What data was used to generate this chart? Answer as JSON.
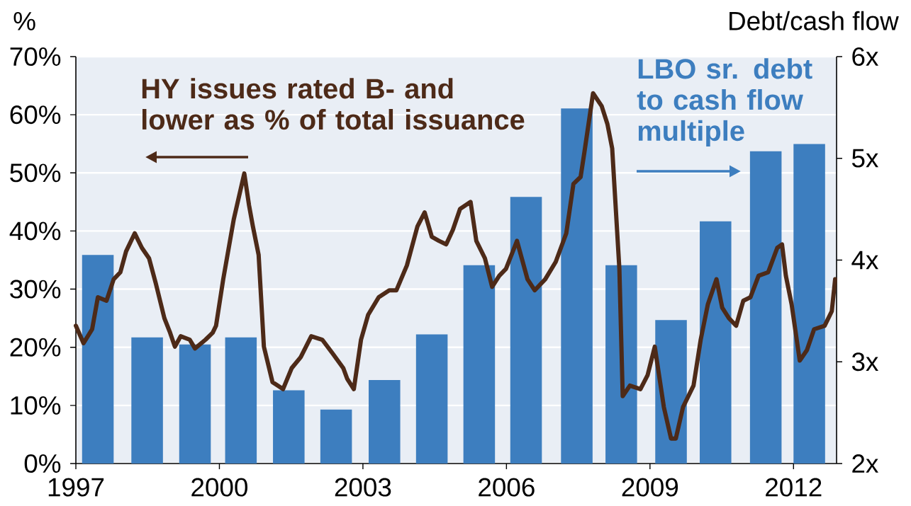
{
  "chart_data": {
    "type": "bar",
    "ylabel": "%",
    "y2label": "Debt/cash flow",
    "annotations": [
      "HY issues rated B- and lower as % of total issuance",
      "LBO sr. debt to cash flow multiple"
    ],
    "xlim": [
      1997,
      2012.9
    ],
    "xticks": [
      1997,
      2000,
      2003,
      2006,
      2009,
      2012
    ],
    "ylim": [
      0,
      70
    ],
    "yticks": [
      {
        "value": 0,
        "label": "0%"
      },
      {
        "value": 10,
        "label": "10%"
      },
      {
        "value": 20,
        "label": "20%"
      },
      {
        "value": 30,
        "label": "30%"
      },
      {
        "value": 40,
        "label": "40%"
      },
      {
        "value": 50,
        "label": "50%"
      },
      {
        "value": 60,
        "label": "60%"
      },
      {
        "value": 70,
        "label": "70%"
      }
    ],
    "y2lim": [
      2,
      6
    ],
    "y2ticks": [
      {
        "value": 2,
        "label": "2x"
      },
      {
        "value": 3,
        "label": "3x"
      },
      {
        "value": 4,
        "label": "4x"
      },
      {
        "value": 5,
        "label": "5x"
      },
      {
        "value": 6,
        "label": "6x"
      }
    ],
    "grid": "y",
    "series": [
      {
        "axis": "y2",
        "color": "#3d7ebf",
        "x": [
          1997.46,
          1998.49,
          1999.49,
          2000.45,
          2001.45,
          2002.44,
          2003.45,
          2004.44,
          2005.43,
          2006.41,
          2007.47,
          2008.4,
          2009.44,
          2010.37,
          2011.42,
          2012.33
        ],
        "values": [
          4.05,
          3.24,
          3.17,
          3.24,
          2.72,
          2.53,
          2.82,
          3.27,
          3.95,
          4.62,
          5.49,
          3.95,
          3.41,
          4.38,
          5.07,
          5.14
        ]
      },
      {
        "type": "line",
        "color": "#4d2a18",
        "x": [
          1997.0,
          1997.16,
          1997.34,
          1997.46,
          1997.64,
          1997.79,
          1997.93,
          1998.05,
          1998.23,
          1998.38,
          1998.53,
          1998.67,
          1998.85,
          1998.97,
          1999.07,
          1999.19,
          1999.38,
          1999.49,
          1999.71,
          1999.86,
          1999.93,
          2000.08,
          2000.3,
          2000.52,
          2000.62,
          2000.7,
          2000.82,
          2000.93,
          2001.11,
          2001.33,
          2001.51,
          2001.7,
          2001.92,
          2002.15,
          2002.37,
          2002.59,
          2002.67,
          2002.81,
          2002.96,
          2003.11,
          2003.33,
          2003.55,
          2003.7,
          2003.92,
          2004.14,
          2004.29,
          2004.44,
          2004.59,
          2004.74,
          2004.88,
          2005.03,
          2005.25,
          2005.37,
          2005.55,
          2005.7,
          2005.85,
          2005.99,
          2006.22,
          2006.44,
          2006.59,
          2006.81,
          2007.03,
          2007.25,
          2007.4,
          2007.55,
          2007.63,
          2007.81,
          2007.99,
          2008.11,
          2008.21,
          2008.36,
          2008.43,
          2008.58,
          2008.8,
          2008.95,
          2009.1,
          2009.29,
          2009.44,
          2009.54,
          2009.69,
          2009.91,
          2010.06,
          2010.21,
          2010.39,
          2010.51,
          2010.65,
          2010.8,
          2010.95,
          2011.1,
          2011.27,
          2011.47,
          2011.66,
          2011.76,
          2011.84,
          2011.96,
          2012.13,
          2012.28,
          2012.43,
          2012.65,
          2012.8,
          2012.87
        ],
        "values": [
          23.7,
          20.7,
          23.1,
          28.6,
          28.0,
          31.7,
          32.9,
          36.5,
          39.6,
          37.1,
          35.3,
          31.0,
          25.0,
          22.5,
          20.1,
          21.9,
          21.3,
          19.8,
          21.3,
          22.5,
          23.7,
          31.7,
          42.0,
          49.9,
          44.4,
          40.8,
          35.9,
          20.1,
          14.0,
          12.8,
          16.4,
          18.3,
          21.9,
          21.3,
          18.9,
          16.4,
          14.6,
          12.8,
          21.3,
          25.6,
          28.6,
          29.8,
          29.8,
          34.1,
          40.8,
          43.2,
          39.0,
          38.3,
          37.7,
          40.2,
          43.8,
          45.0,
          38.3,
          35.3,
          30.4,
          32.3,
          33.5,
          38.3,
          31.7,
          29.8,
          31.7,
          34.7,
          39.6,
          48.1,
          49.3,
          53.6,
          63.7,
          61.5,
          58.4,
          54.2,
          33.5,
          11.6,
          13.4,
          12.8,
          15.2,
          20.1,
          9.7,
          4.3,
          4.3,
          9.7,
          13.4,
          21.3,
          27.4,
          31.7,
          26.8,
          25.0,
          23.7,
          28.0,
          28.6,
          32.3,
          32.9,
          37.1,
          37.7,
          32.3,
          27.4,
          17.7,
          19.5,
          23.1,
          23.7,
          26.2,
          31.7
        ]
      }
    ]
  }
}
